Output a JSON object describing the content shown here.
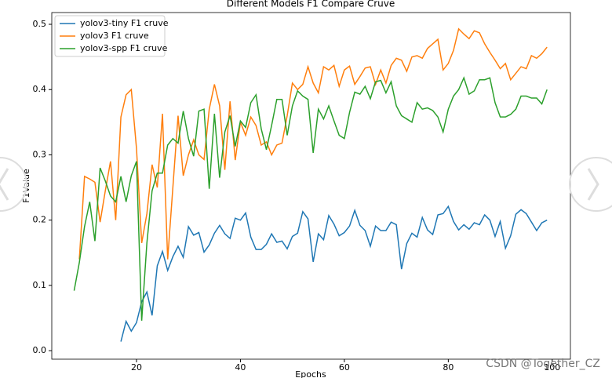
{
  "chart_data": {
    "type": "line",
    "title": "Different Models F1 Compare Cruve",
    "xlabel": "Epochs",
    "ylabel": "F1Value",
    "x": [
      8,
      9,
      10,
      11,
      12,
      13,
      14,
      15,
      16,
      17,
      18,
      19,
      20,
      21,
      22,
      23,
      24,
      25,
      26,
      27,
      28,
      29,
      30,
      31,
      32,
      33,
      34,
      35,
      36,
      37,
      38,
      39,
      40,
      41,
      42,
      43,
      44,
      45,
      46,
      47,
      48,
      49,
      50,
      51,
      52,
      53,
      54,
      55,
      56,
      57,
      58,
      59,
      60,
      61,
      62,
      63,
      64,
      65,
      66,
      67,
      68,
      69,
      70,
      71,
      72,
      73,
      74,
      75,
      76,
      77,
      78,
      79,
      80,
      81,
      82,
      83,
      84,
      85,
      86,
      87,
      88,
      89,
      90,
      91,
      92,
      93,
      94,
      95,
      96,
      97,
      98,
      99
    ],
    "series": [
      {
        "name": "yolov3-tiny F1 cruve",
        "color": "#1f77b4",
        "values": [
          null,
          null,
          null,
          null,
          null,
          null,
          null,
          null,
          null,
          0.014,
          0.045,
          0.03,
          0.043,
          0.075,
          0.09,
          0.054,
          0.13,
          0.152,
          0.123,
          0.144,
          0.16,
          0.143,
          0.19,
          0.177,
          0.181,
          0.151,
          0.162,
          0.18,
          0.192,
          0.179,
          0.172,
          0.203,
          0.2,
          0.211,
          0.174,
          0.155,
          0.155,
          0.163,
          0.179,
          0.166,
          0.168,
          0.156,
          0.175,
          0.18,
          0.213,
          0.202,
          0.136,
          0.179,
          0.17,
          0.207,
          0.194,
          0.176,
          0.181,
          0.191,
          0.215,
          0.192,
          0.184,
          0.16,
          0.191,
          0.184,
          0.184,
          0.197,
          0.193,
          0.125,
          0.164,
          0.18,
          0.174,
          0.204,
          0.185,
          0.178,
          0.208,
          0.21,
          0.221,
          0.198,
          0.185,
          0.193,
          0.186,
          0.196,
          0.193,
          0.208,
          0.2,
          0.175,
          0.198,
          0.157,
          0.176,
          0.209,
          0.216,
          0.21,
          0.197,
          0.184,
          0.196,
          0.2
        ]
      },
      {
        "name": "yolov3 F1 cruve",
        "color": "#ff7f0e",
        "values": [
          null,
          0.14,
          0.267,
          0.263,
          0.258,
          0.197,
          0.245,
          0.29,
          0.2,
          0.358,
          0.392,
          0.4,
          0.31,
          0.165,
          0.21,
          0.285,
          0.25,
          0.363,
          0.14,
          0.25,
          0.36,
          0.268,
          0.3,
          0.323,
          0.3,
          0.293,
          0.37,
          0.408,
          0.375,
          0.277,
          0.382,
          0.292,
          0.35,
          0.33,
          0.358,
          0.345,
          0.315,
          0.32,
          0.3,
          0.315,
          0.318,
          0.36,
          0.41,
          0.4,
          0.408,
          0.435,
          0.41,
          0.395,
          0.435,
          0.43,
          0.437,
          0.405,
          0.43,
          0.436,
          0.408,
          0.42,
          0.433,
          0.435,
          0.408,
          0.43,
          0.41,
          0.437,
          0.448,
          0.445,
          0.428,
          0.45,
          0.452,
          0.448,
          0.463,
          0.47,
          0.477,
          0.43,
          0.44,
          0.46,
          0.493,
          0.485,
          0.478,
          0.49,
          0.487,
          0.47,
          0.457,
          0.445,
          0.432,
          0.44,
          0.415,
          0.425,
          0.435,
          0.432,
          0.452,
          0.448,
          0.455,
          0.465
        ]
      },
      {
        "name": "yolov3-spp F1 cruve",
        "color": "#2ca02c",
        "values": [
          0.092,
          0.135,
          0.19,
          0.228,
          0.168,
          0.28,
          0.26,
          0.237,
          0.228,
          0.267,
          0.228,
          0.268,
          0.29,
          0.046,
          0.165,
          0.245,
          0.272,
          0.272,
          0.315,
          0.325,
          0.318,
          0.367,
          0.325,
          0.298,
          0.367,
          0.37,
          0.248,
          0.363,
          0.265,
          0.335,
          0.36,
          0.313,
          0.352,
          0.342,
          0.38,
          0.392,
          0.34,
          0.308,
          0.345,
          0.385,
          0.385,
          0.33,
          0.375,
          0.398,
          0.39,
          0.385,
          0.303,
          0.37,
          0.355,
          0.375,
          0.352,
          0.33,
          0.325,
          0.365,
          0.396,
          0.393,
          0.405,
          0.386,
          0.412,
          0.414,
          0.395,
          0.412,
          0.375,
          0.36,
          0.355,
          0.35,
          0.38,
          0.37,
          0.372,
          0.368,
          0.358,
          0.335,
          0.37,
          0.39,
          0.4,
          0.418,
          0.393,
          0.398,
          0.415,
          0.415,
          0.418,
          0.38,
          0.358,
          0.358,
          0.362,
          0.37,
          0.39,
          0.39,
          0.387,
          0.387,
          0.378,
          0.4
        ]
      }
    ],
    "xlim": [
      3.7,
      103.5
    ],
    "ylim": [
      -0.013,
      0.518
    ],
    "xticks": [
      20,
      40,
      60,
      80,
      100
    ],
    "yticks": [
      {
        "value": 0,
        "label": "0.0"
      },
      0.1,
      0.2,
      0.3,
      0.4,
      0.5
    ],
    "legend": "upper-left"
  },
  "watermark": "CSDN @Together_CZ"
}
